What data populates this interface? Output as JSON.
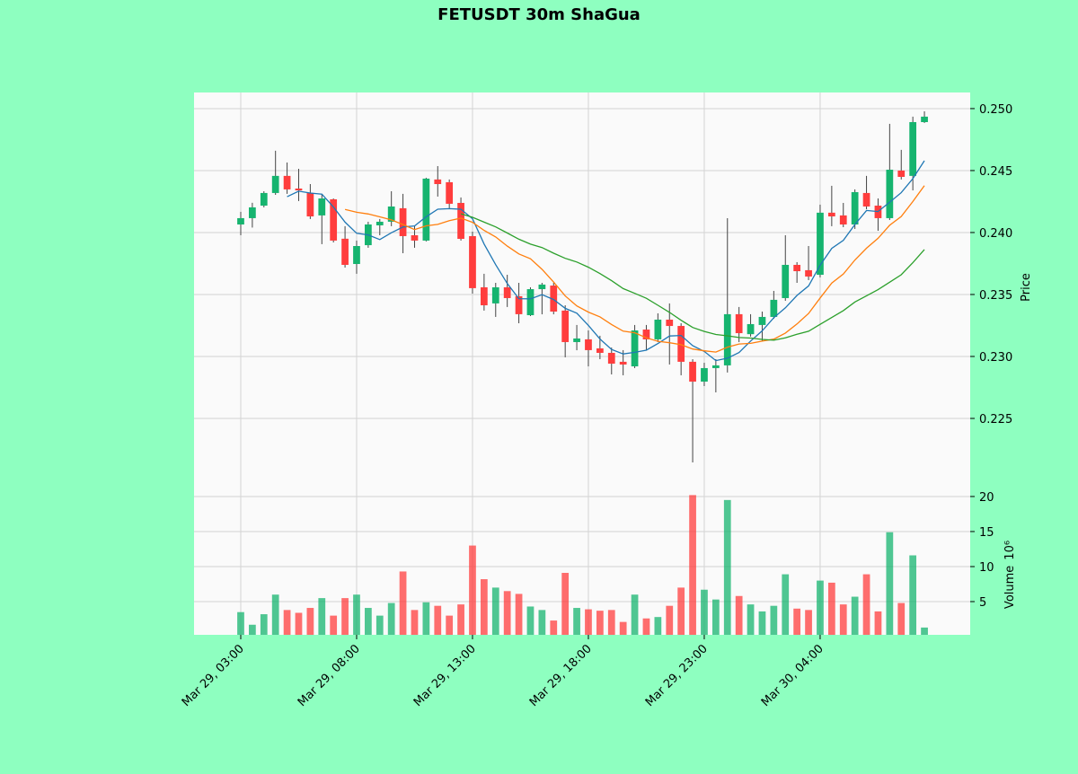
{
  "chart_data": {
    "type": "candlestick",
    "title": "FETUSDT 30m ShaGua",
    "ylabel": "Price",
    "volume_label": "Volume",
    "volume_unit": "10⁶",
    "up_color": "#16b46f",
    "down_color": "#ff3d3d",
    "grid": true,
    "xlim": [
      -4.03,
      62.95
    ],
    "xticks": [
      {
        "value": 0,
        "label": "Mar 29, 03:00"
      },
      {
        "value": 10,
        "label": "Mar 29, 08:00"
      },
      {
        "value": 20,
        "label": "Mar 29, 13:00"
      },
      {
        "value": 30,
        "label": "Mar 29, 18:00"
      },
      {
        "value": 40,
        "label": "Mar 29, 23:00"
      },
      {
        "value": 50,
        "label": "Mar 30, 04:00"
      }
    ],
    "ylim": [
      0.22,
      0.2513
    ],
    "yticks": [
      {
        "value": 0.225,
        "label": "0.225"
      },
      {
        "value": 0.23,
        "label": "0.230"
      },
      {
        "value": 0.235,
        "label": "0.235"
      },
      {
        "value": 0.24,
        "label": "0.240"
      },
      {
        "value": 0.245,
        "label": "0.245"
      },
      {
        "value": 0.25,
        "label": "0.250"
      }
    ],
    "volume_ylim": [
      0.26,
      22.3
    ],
    "volume_yticks": [
      5,
      10,
      15,
      20
    ],
    "open": [
      0.24065,
      0.24116,
      0.24217,
      0.24319,
      0.24457,
      0.24355,
      0.24319,
      0.24138,
      0.24268,
      0.2395,
      0.23746,
      0.23898,
      0.24058,
      0.24087,
      0.24196,
      0.23978,
      0.23935,
      0.24428,
      0.24406,
      0.24239,
      0.23971,
      0.23558,
      0.23428,
      0.23558,
      0.23486,
      0.23333,
      0.23543,
      0.23572,
      0.2337,
      0.23116,
      0.23138,
      0.23065,
      0.23029,
      0.22957,
      0.2292,
      0.23217,
      0.23138,
      0.23297,
      0.23246,
      0.22957,
      0.22797,
      0.22906,
      0.22928,
      0.23341,
      0.2318,
      0.23254,
      0.23319,
      0.23471,
      0.23739,
      0.23696,
      0.23659,
      0.2416,
      0.24138,
      0.24065,
      0.24319,
      0.24217,
      0.24116,
      0.245,
      0.24457,
      0.24891
    ],
    "high": [
      0.24167,
      0.2424,
      0.24333,
      0.2466,
      0.24565,
      0.24514,
      0.24391,
      0.24312,
      0.24275,
      0.24051,
      0.23935,
      0.24087,
      0.24109,
      0.24333,
      0.24312,
      0.24051,
      0.24442,
      0.24536,
      0.24428,
      0.24283,
      0.24007,
      0.23667,
      0.23594,
      0.23659,
      0.23594,
      0.23558,
      0.23594,
      0.23594,
      0.23413,
      0.23254,
      0.2321,
      0.23167,
      0.23072,
      0.23051,
      0.23254,
      0.23254,
      0.23348,
      0.23428,
      0.23268,
      0.22978,
      0.22949,
      0.22978,
      0.24116,
      0.23399,
      0.23341,
      0.23362,
      0.23529,
      0.23978,
      0.23761,
      0.23891,
      0.24225,
      0.24377,
      0.24239,
      0.24348,
      0.24457,
      0.24275,
      0.24877,
      0.24667,
      0.24935,
      0.24978
    ],
    "low": [
      0.23978,
      0.2404,
      0.24203,
      0.24304,
      0.24312,
      0.24254,
      0.24109,
      0.23906,
      0.2392,
      0.23717,
      0.23667,
      0.23877,
      0.23978,
      0.24051,
      0.23833,
      0.23877,
      0.23928,
      0.2429,
      0.24196,
      0.23935,
      0.23507,
      0.2337,
      0.23319,
      0.23399,
      0.23268,
      0.23326,
      0.2334,
      0.2334,
      0.22993,
      0.2305,
      0.2292,
      0.22978,
      0.22855,
      0.22848,
      0.22906,
      0.23051,
      0.23116,
      0.22935,
      0.22848,
      0.22145,
      0.22761,
      0.2271,
      0.2287,
      0.23116,
      0.2316,
      0.23123,
      0.23304,
      0.23449,
      0.23594,
      0.23616,
      0.23638,
      0.24051,
      0.24043,
      0.24029,
      0.24188,
      0.24014,
      0.24101,
      0.24428,
      0.2434,
      0.24884
    ],
    "close": [
      0.24116,
      0.24203,
      0.24319,
      0.24457,
      0.24348,
      0.2434,
      0.2413,
      0.24275,
      0.23935,
      0.23739,
      0.23891,
      0.24065,
      0.24087,
      0.2421,
      0.23971,
      0.23935,
      0.24435,
      0.24391,
      0.24232,
      0.23949,
      0.23551,
      0.23413,
      0.23558,
      0.23471,
      0.23341,
      0.23543,
      0.2358,
      0.23362,
      0.23116,
      0.23145,
      0.23051,
      0.23029,
      0.22942,
      0.22935,
      0.2321,
      0.23138,
      0.23297,
      0.23246,
      0.22957,
      0.22797,
      0.22906,
      0.22928,
      0.23341,
      0.23188,
      0.23261,
      0.23319,
      0.23457,
      0.23739,
      0.23688,
      0.23645,
      0.2416,
      0.2413,
      0.24065,
      0.24326,
      0.2421,
      0.24116,
      0.24507,
      0.24449,
      0.24891,
      0.24935
    ],
    "volume": [
      3.5,
      1.7,
      3.2,
      6,
      3.8,
      3.4,
      4.1,
      5.5,
      3.0,
      5.5,
      6,
      4.1,
      3.0,
      4.8,
      9.3,
      3.8,
      4.9,
      4.4,
      3.0,
      4.6,
      13,
      8.2,
      7.0,
      6.5,
      6.1,
      4.3,
      3.8,
      2.3,
      9.1,
      4.1,
      3.9,
      3.7,
      3.8,
      2.1,
      6.0,
      2.6,
      2.8,
      4.4,
      7.0,
      20.2,
      6.7,
      5.3,
      19.5,
      5.8,
      4.6,
      3.6,
      4.4,
      8.9,
      4.0,
      3.8,
      8.0,
      7.7,
      4.6,
      5.7,
      8.9,
      3.6,
      14.9,
      4.8,
      11.6,
      1.3
    ],
    "moving_averages": [
      {
        "period": 5,
        "color": "#1f77b4"
      },
      {
        "period": 10,
        "color": "#ff7f0e"
      },
      {
        "period": 20,
        "color": "#2ca02c"
      }
    ]
  }
}
